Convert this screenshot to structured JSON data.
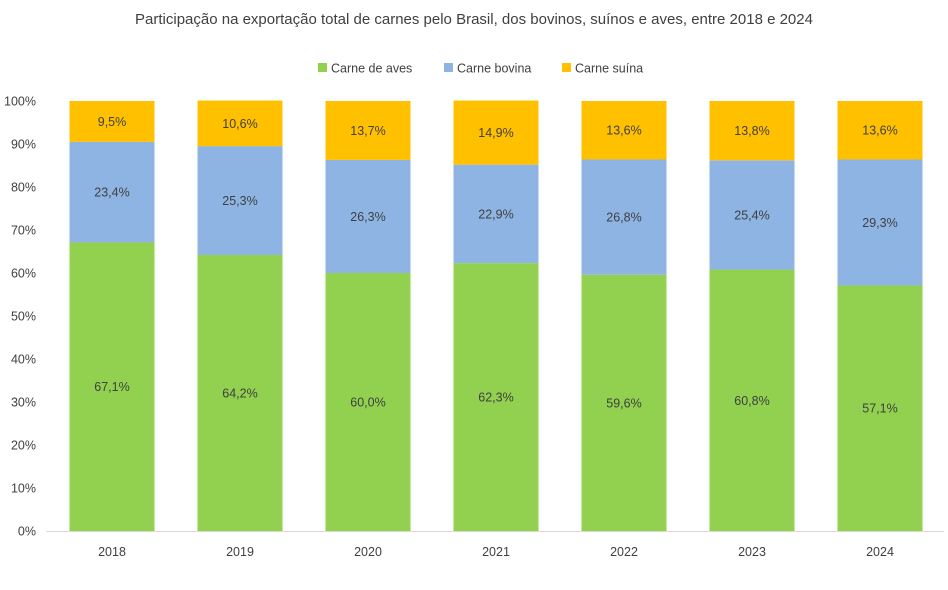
{
  "chart_data": {
    "type": "bar",
    "stacked": true,
    "title": "Participação na exportação total de carnes pelo Brasil, dos bovinos, suínos e aves, entre 2018 e 2024",
    "categories": [
      "2018",
      "2019",
      "2020",
      "2021",
      "2022",
      "2023",
      "2024"
    ],
    "series": [
      {
        "name": "Carne de aves",
        "color": "#92d050",
        "values": [
          67.1,
          64.2,
          60.0,
          62.3,
          59.6,
          60.8,
          57.1
        ],
        "labels": [
          "67,1%",
          "64,2%",
          "60,0%",
          "62,3%",
          "59,6%",
          "60,8%",
          "57,1%"
        ]
      },
      {
        "name": "Carne bovina",
        "color": "#8eb4e3",
        "values": [
          23.4,
          25.3,
          26.3,
          22.9,
          26.8,
          25.4,
          29.3
        ],
        "labels": [
          "23,4%",
          "25,3%",
          "26,3%",
          "22,9%",
          "26,8%",
          "25,4%",
          "29,3%"
        ]
      },
      {
        "name": "Carne suína",
        "color": "#ffc000",
        "values": [
          9.5,
          10.6,
          13.7,
          14.9,
          13.6,
          13.8,
          13.6
        ],
        "labels": [
          "9,5%",
          "10,6%",
          "13,7%",
          "14,9%",
          "13,6%",
          "13,8%",
          "13,6%"
        ]
      }
    ],
    "yticks": [
      "0%",
      "10%",
      "20%",
      "30%",
      "40%",
      "50%",
      "60%",
      "70%",
      "80%",
      "90%",
      "100%"
    ],
    "ylim": [
      0,
      100
    ],
    "legend_position": "top",
    "grid": false
  }
}
